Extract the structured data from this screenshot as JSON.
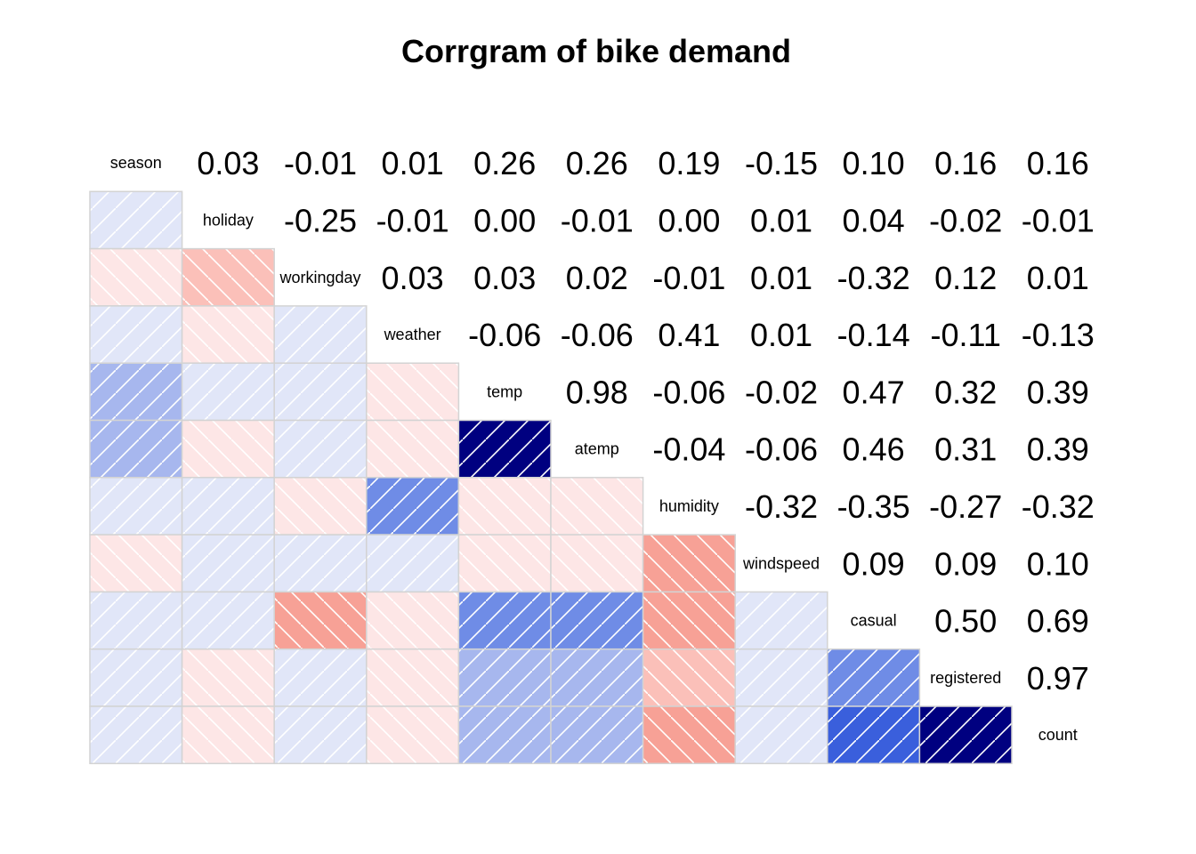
{
  "chart_data": {
    "type": "heatmap",
    "title": "Corrgram of bike demand",
    "variables": [
      "season",
      "holiday",
      "workingday",
      "weather",
      "temp",
      "atemp",
      "humidity",
      "windspeed",
      "casual",
      "registered",
      "count"
    ],
    "matrix": [
      [
        1,
        0.03,
        -0.01,
        0.01,
        0.26,
        0.26,
        0.19,
        -0.15,
        0.1,
        0.16,
        0.16
      ],
      [
        0.03,
        1,
        -0.25,
        -0.01,
        0.0,
        -0.01,
        0.0,
        0.01,
        0.04,
        -0.02,
        -0.01
      ],
      [
        -0.01,
        -0.25,
        1,
        0.03,
        0.03,
        0.02,
        -0.01,
        0.01,
        -0.32,
        0.12,
        0.01
      ],
      [
        0.01,
        -0.01,
        0.03,
        1,
        -0.06,
        -0.06,
        0.41,
        0.01,
        -0.14,
        -0.11,
        -0.13
      ],
      [
        0.26,
        0.0,
        0.03,
        -0.06,
        1,
        0.98,
        -0.06,
        -0.02,
        0.47,
        0.32,
        0.39
      ],
      [
        0.26,
        -0.01,
        0.02,
        -0.06,
        0.98,
        1,
        -0.04,
        -0.06,
        0.46,
        0.31,
        0.39
      ],
      [
        0.19,
        0.0,
        -0.01,
        0.41,
        -0.06,
        -0.04,
        1,
        -0.32,
        -0.35,
        -0.27,
        -0.32
      ],
      [
        -0.15,
        0.01,
        0.01,
        0.01,
        -0.02,
        -0.06,
        -0.32,
        1,
        0.09,
        0.09,
        0.1
      ],
      [
        0.1,
        0.04,
        -0.32,
        -0.14,
        0.47,
        0.46,
        -0.35,
        0.09,
        1,
        0.5,
        0.69
      ],
      [
        0.16,
        -0.02,
        0.12,
        -0.11,
        0.32,
        0.31,
        -0.27,
        0.09,
        0.5,
        1,
        0.97
      ],
      [
        0.16,
        -0.01,
        0.01,
        -0.13,
        0.39,
        0.39,
        -0.32,
        0.1,
        0.69,
        0.97,
        1
      ]
    ],
    "lower_panel": "shade",
    "upper_panel": "value",
    "diagonal": "variable names",
    "colors": {
      "negative_light": "#fde6e6",
      "negative_mid": "#f7a196",
      "positive_light": "#e1e6f8",
      "positive_mid": "#6f8ce6",
      "positive_strong": "#3a5fdc",
      "positive_max": "#000080",
      "grid_border": "#d3d3d3"
    }
  }
}
